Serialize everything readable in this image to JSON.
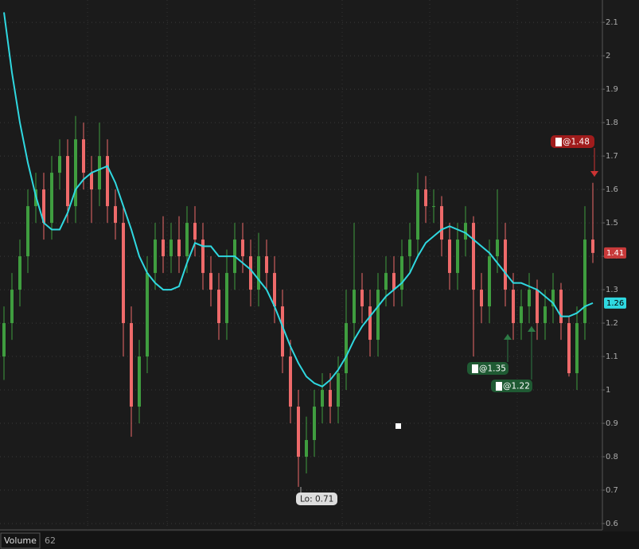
{
  "chart_data": {
    "type": "candlestick",
    "open": [
      1.1,
      1.2,
      1.3,
      1.4,
      1.55,
      1.6,
      1.5,
      1.65,
      1.7,
      1.55,
      1.75,
      1.65,
      1.6,
      1.7,
      1.55,
      1.5,
      1.2,
      0.95,
      1.1,
      1.35,
      1.45,
      1.4,
      1.45,
      1.4,
      1.5,
      1.45,
      1.35,
      1.3,
      1.2,
      1.35,
      1.45,
      1.4,
      1.3,
      1.4,
      1.35,
      1.25,
      1.1,
      0.95,
      0.8,
      0.85,
      0.95,
      1.0,
      0.95,
      1.05,
      1.2,
      1.3,
      1.25,
      1.15,
      1.3,
      1.35,
      1.3,
      1.4,
      1.45,
      1.6,
      1.55,
      1.55,
      1.45,
      1.35,
      1.45,
      1.5,
      1.3,
      1.25,
      1.4,
      1.45,
      1.3,
      1.2,
      1.25,
      1.3,
      1.2,
      1.25,
      1.3,
      1.2,
      1.05,
      1.2,
      1.45
    ],
    "high": [
      1.25,
      1.35,
      1.45,
      1.6,
      1.65,
      1.65,
      1.7,
      1.75,
      1.75,
      1.82,
      1.8,
      1.7,
      1.8,
      1.75,
      1.6,
      1.55,
      1.25,
      1.15,
      1.4,
      1.5,
      1.52,
      1.5,
      1.52,
      1.55,
      1.55,
      1.5,
      1.4,
      1.35,
      1.42,
      1.5,
      1.5,
      1.45,
      1.47,
      1.45,
      1.4,
      1.3,
      1.15,
      1.0,
      0.92,
      1.0,
      1.05,
      1.05,
      1.1,
      1.3,
      1.5,
      1.35,
      1.3,
      1.35,
      1.4,
      1.4,
      1.45,
      1.5,
      1.65,
      1.64,
      1.6,
      1.58,
      1.5,
      1.5,
      1.55,
      1.52,
      1.35,
      1.45,
      1.6,
      1.5,
      1.35,
      1.3,
      1.35,
      1.33,
      1.3,
      1.35,
      1.32,
      1.22,
      1.25,
      1.55,
      1.62
    ],
    "low": [
      1.03,
      1.15,
      1.25,
      1.35,
      1.5,
      1.45,
      1.45,
      1.6,
      1.5,
      1.5,
      1.6,
      1.5,
      1.55,
      1.5,
      1.45,
      1.1,
      0.86,
      0.9,
      1.05,
      1.3,
      1.35,
      1.35,
      1.35,
      1.35,
      1.4,
      1.3,
      1.25,
      1.15,
      1.15,
      1.3,
      1.35,
      1.25,
      1.25,
      1.3,
      1.2,
      1.05,
      0.9,
      0.71,
      0.75,
      0.8,
      0.9,
      0.9,
      0.9,
      1.0,
      1.15,
      1.2,
      1.1,
      1.1,
      1.25,
      1.25,
      1.25,
      1.35,
      1.4,
      1.5,
      1.5,
      1.4,
      1.3,
      1.3,
      1.4,
      1.1,
      1.2,
      1.2,
      1.35,
      1.25,
      1.15,
      1.15,
      1.2,
      1.15,
      1.15,
      1.2,
      1.15,
      1.04,
      1.0,
      1.15,
      1.38
    ],
    "close": [
      1.2,
      1.3,
      1.4,
      1.55,
      1.6,
      1.5,
      1.65,
      1.7,
      1.55,
      1.75,
      1.65,
      1.6,
      1.7,
      1.55,
      1.5,
      1.2,
      0.95,
      1.1,
      1.35,
      1.45,
      1.4,
      1.45,
      1.4,
      1.5,
      1.45,
      1.35,
      1.3,
      1.2,
      1.35,
      1.45,
      1.4,
      1.3,
      1.4,
      1.35,
      1.25,
      1.1,
      0.95,
      0.8,
      0.85,
      0.95,
      1.0,
      0.95,
      1.05,
      1.2,
      1.3,
      1.25,
      1.15,
      1.3,
      1.35,
      1.3,
      1.4,
      1.45,
      1.6,
      1.55,
      1.55,
      1.45,
      1.35,
      1.45,
      1.5,
      1.3,
      1.25,
      1.4,
      1.45,
      1.3,
      1.2,
      1.25,
      1.3,
      1.2,
      1.25,
      1.3,
      1.2,
      1.05,
      1.2,
      1.45,
      1.41
    ],
    "up_color": "#3f9d3f",
    "down_color": "#ee6a6a",
    "moving_average": {
      "color": "#2fd8e0",
      "values": [
        2.13,
        1.95,
        1.8,
        1.68,
        1.58,
        1.5,
        1.48,
        1.48,
        1.53,
        1.6,
        1.63,
        1.65,
        1.66,
        1.67,
        1.62,
        1.55,
        1.48,
        1.4,
        1.35,
        1.32,
        1.3,
        1.3,
        1.31,
        1.38,
        1.44,
        1.43,
        1.43,
        1.4,
        1.4,
        1.4,
        1.38,
        1.36,
        1.33,
        1.3,
        1.25,
        1.19,
        1.13,
        1.08,
        1.04,
        1.02,
        1.01,
        1.03,
        1.06,
        1.1,
        1.15,
        1.19,
        1.22,
        1.25,
        1.28,
        1.3,
        1.32,
        1.35,
        1.4,
        1.44,
        1.46,
        1.48,
        1.49,
        1.48,
        1.47,
        1.45,
        1.43,
        1.41,
        1.38,
        1.35,
        1.32,
        1.32,
        1.31,
        1.3,
        1.28,
        1.26,
        1.22,
        1.22,
        1.23,
        1.25,
        1.26
      ]
    },
    "ylim": [
      0.581,
      2.167
    ],
    "yticks": [
      0.6,
      0.7,
      0.8,
      0.9,
      1,
      1.1,
      1.2,
      1.3,
      1.4,
      1.5,
      1.6,
      1.7,
      1.8,
      1.9,
      2,
      2.1
    ],
    "grid": true,
    "annotations": [
      "@1.48",
      "@1.35",
      "@1.22",
      "Lo: 0.71"
    ],
    "volume_label": "Volume",
    "volume_value": 62
  }
}
